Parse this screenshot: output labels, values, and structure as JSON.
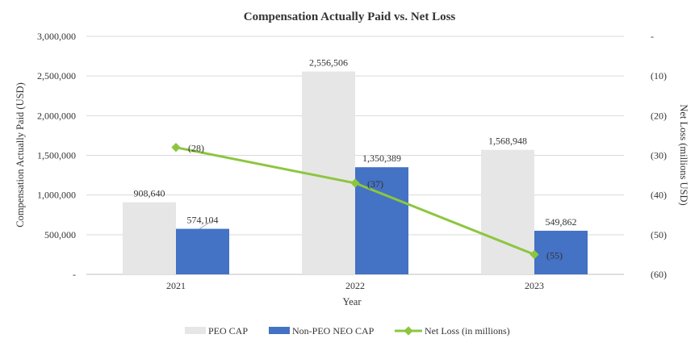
{
  "chart_data": {
    "type": "bar",
    "title": "Compensation Actually Paid vs. Net Loss",
    "xlabel": "Year",
    "ylabel": "Compensation Actually Paid (USD)",
    "y2label": "Net Loss (millions USD)",
    "categories": [
      "2021",
      "2022",
      "2023"
    ],
    "ylim": [
      0,
      3000000
    ],
    "y_ticks": [
      "-",
      "500,000",
      "1,000,000",
      "1,500,000",
      "2,000,000",
      "2,500,000",
      "3,000,000"
    ],
    "y2lim": [
      0,
      -60
    ],
    "y2_ticks": [
      "-",
      "(10)",
      "(20)",
      "(30)",
      "(40)",
      "(50)",
      "(60)"
    ],
    "grid": true,
    "legend_position": "bottom",
    "series": [
      {
        "name": "PEO CAP",
        "kind": "bar",
        "color": "#e6e6e6",
        "values": [
          908640,
          2556506,
          1568948
        ],
        "labels": [
          "908,640",
          "2,556,506",
          "1,568,948"
        ]
      },
      {
        "name": "Non-PEO NEO CAP",
        "kind": "bar",
        "color": "#4472c4",
        "values": [
          574104,
          1350389,
          549862
        ],
        "labels": [
          "574,104",
          "1,350,389",
          "549,862"
        ]
      },
      {
        "name": "Net Loss (in millions)",
        "kind": "line",
        "axis": "secondary",
        "color": "#8cc63f",
        "values": [
          -28,
          -37,
          -55
        ],
        "labels": [
          "(28)",
          "(37)",
          "(55)"
        ]
      }
    ]
  }
}
